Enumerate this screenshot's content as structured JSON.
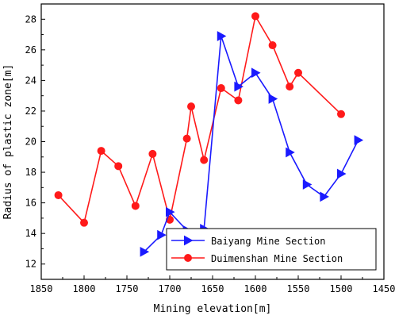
{
  "chart_data": {
    "type": "line",
    "title": "",
    "xlabel": "Mining elevation[m]",
    "ylabel": "Radius of plastic zone[m]",
    "xlim": [
      1850,
      1450
    ],
    "ylim": [
      11,
      29
    ],
    "x_reversed": true,
    "x_ticks": [
      1850,
      1800,
      1750,
      1700,
      1650,
      1600,
      1550,
      1500,
      1450
    ],
    "y_ticks": [
      12,
      14,
      16,
      18,
      20,
      22,
      24,
      26,
      28
    ],
    "grid": false,
    "legend_position": "bottom-right",
    "series": [
      {
        "name": "Baiyang Mine Section",
        "color": "#1a1aff",
        "marker": "triangle-right",
        "points": [
          {
            "x": 1730,
            "y": 12.8
          },
          {
            "x": 1710,
            "y": 13.9
          },
          {
            "x": 1700,
            "y": 15.4
          },
          {
            "x": 1680,
            "y": 14.2
          },
          {
            "x": 1660,
            "y": 14.3
          },
          {
            "x": 1640,
            "y": 26.9
          },
          {
            "x": 1620,
            "y": 23.6
          },
          {
            "x": 1600,
            "y": 24.5
          },
          {
            "x": 1580,
            "y": 22.8
          },
          {
            "x": 1560,
            "y": 19.3
          },
          {
            "x": 1540,
            "y": 17.2
          },
          {
            "x": 1520,
            "y": 16.4
          },
          {
            "x": 1500,
            "y": 17.9
          },
          {
            "x": 1480,
            "y": 20.1
          }
        ]
      },
      {
        "name": "Duimenshan Mine Section",
        "color": "#ff1a1a",
        "marker": "circle",
        "points": [
          {
            "x": 1830,
            "y": 16.5
          },
          {
            "x": 1800,
            "y": 14.7
          },
          {
            "x": 1780,
            "y": 19.4
          },
          {
            "x": 1760,
            "y": 18.4
          },
          {
            "x": 1740,
            "y": 15.8
          },
          {
            "x": 1720,
            "y": 19.2
          },
          {
            "x": 1700,
            "y": 14.9
          },
          {
            "x": 1680,
            "y": 20.2
          },
          {
            "x": 1675,
            "y": 22.3
          },
          {
            "x": 1660,
            "y": 18.8
          },
          {
            "x": 1640,
            "y": 23.5
          },
          {
            "x": 1620,
            "y": 22.7
          },
          {
            "x": 1600,
            "y": 28.2
          },
          {
            "x": 1580,
            "y": 26.3
          },
          {
            "x": 1560,
            "y": 23.6
          },
          {
            "x": 1550,
            "y": 24.5
          },
          {
            "x": 1500,
            "y": 21.8
          }
        ]
      }
    ]
  }
}
